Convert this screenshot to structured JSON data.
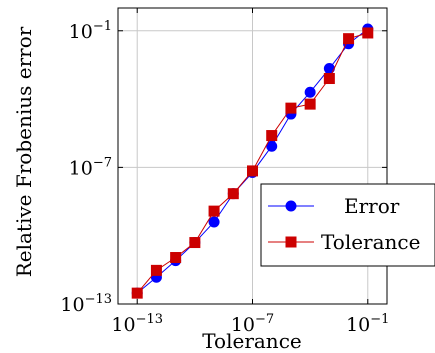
{
  "chart_data": {
    "type": "line",
    "xlabel": "Tolerance",
    "ylabel": "Relative Frobenius error",
    "xscale": "log",
    "yscale": "log",
    "xlim": [
      1e-14,
      1.0
    ],
    "ylim": [
      1e-13,
      1.0
    ],
    "grid": true,
    "legend_position": "bottom-right",
    "x_ticks": [
      {
        "value": 1e-13,
        "base": "10",
        "exp": "−13"
      },
      {
        "value": 1e-07,
        "base": "10",
        "exp": "−7"
      },
      {
        "value": 0.1,
        "base": "10",
        "exp": "−1"
      }
    ],
    "y_ticks": [
      {
        "value": 1e-13,
        "base": "10",
        "exp": "−13"
      },
      {
        "value": 1e-07,
        "base": "10",
        "exp": "−7"
      },
      {
        "value": 0.1,
        "base": "10",
        "exp": "−1"
      }
    ],
    "series": [
      {
        "name": "Error",
        "color": "#0000ff",
        "marker": "circle",
        "x": [
          1e-13,
          1e-12,
          1e-11,
          1e-10,
          1e-09,
          1e-08,
          1e-07,
          1e-06,
          1e-05,
          0.0001,
          0.001,
          0.01,
          0.1
        ],
        "y": [
          3e-13,
          1.5e-12,
          8e-12,
          5e-11,
          4e-10,
          7e-09,
          6e-08,
          8.5e-07,
          2.2e-05,
          0.0002,
          0.0022,
          0.027,
          0.12
        ]
      },
      {
        "name": "Tolerance",
        "color": "#cc0000",
        "marker": "square",
        "x": [
          1e-13,
          1e-12,
          1e-11,
          1e-10,
          1e-09,
          1e-08,
          1e-07,
          1e-06,
          1e-05,
          0.0001,
          0.001,
          0.01,
          0.1
        ],
        "y": [
          3e-13,
          3e-12,
          1.1e-11,
          5e-11,
          1.2e-09,
          7e-09,
          7e-08,
          2.5e-06,
          4e-05,
          6e-05,
          0.0008,
          0.045,
          0.08
        ]
      }
    ]
  }
}
